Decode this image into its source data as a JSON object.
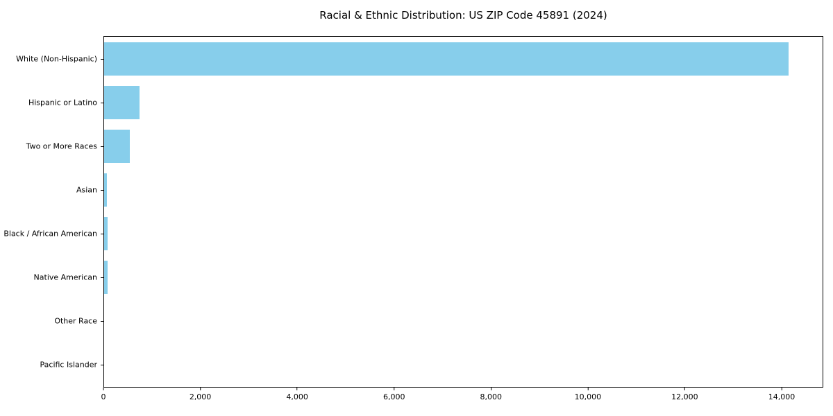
{
  "chart_data": {
    "type": "bar",
    "orientation": "horizontal",
    "title": "Racial & Ethnic Distribution: US ZIP Code 45891 (2024)",
    "xlabel": "",
    "ylabel": "",
    "categories": [
      "White (Non-Hispanic)",
      "Hispanic or Latino",
      "Two or More Races",
      "Asian",
      "Black / African American",
      "Native American",
      "Other Race",
      "Pacific Islander"
    ],
    "values": [
      14150,
      730,
      530,
      55,
      65,
      65,
      0,
      0
    ],
    "xlim": [
      0,
      14860
    ],
    "x_tick_values": [
      0,
      2000,
      4000,
      6000,
      8000,
      10000,
      12000,
      14000
    ],
    "x_tick_labels": [
      "0",
      "2,000",
      "4,000",
      "6,000",
      "8,000",
      "10,000",
      "12,000",
      "14,000"
    ],
    "bar_color": "#87CEEB",
    "grid": false,
    "legend": null
  }
}
